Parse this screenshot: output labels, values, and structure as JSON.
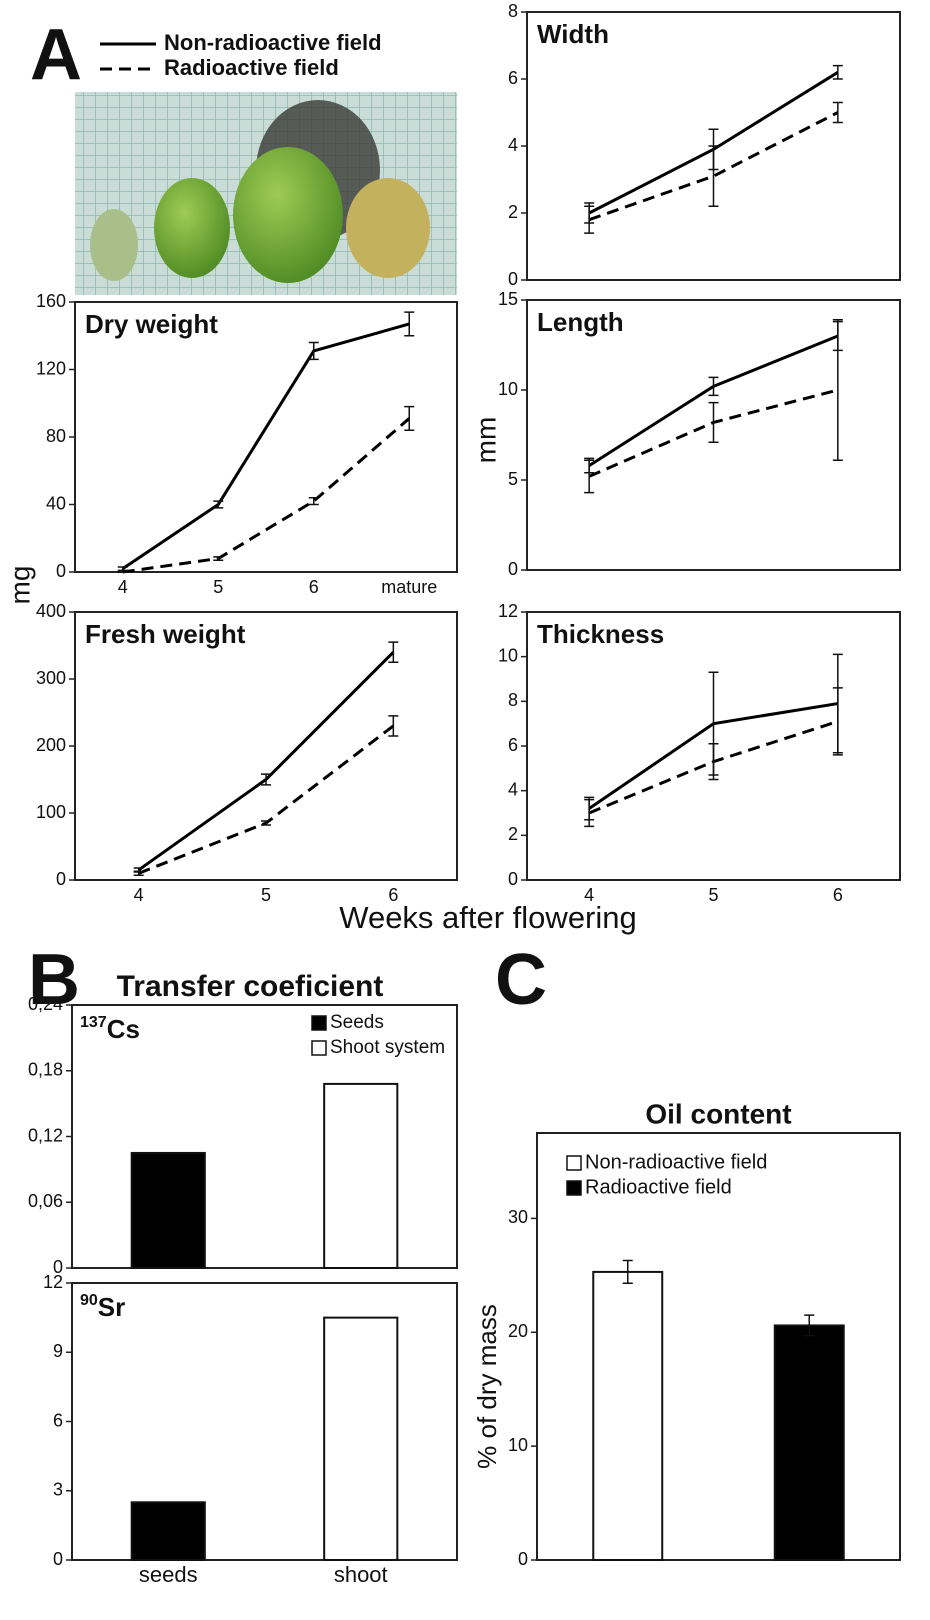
{
  "figure": {
    "panels": [
      "A",
      "B",
      "C"
    ],
    "x_label": "Weeks after flowering",
    "y_label_left": "mg",
    "y_label_right": "mm",
    "b_title": "Transfer coeficient"
  },
  "chart_data": [
    {
      "type": "line",
      "title": "Dry weight",
      "categories": [
        "4",
        "5",
        "6",
        "mature"
      ],
      "ylim": [
        0,
        160
      ],
      "yticks": [
        0,
        40,
        80,
        120,
        160
      ],
      "series": [
        {
          "name": "Non-radioactive field",
          "style": "solid",
          "color": "#000000",
          "values": [
            2,
            40,
            131,
            147
          ],
          "errors": [
            1,
            2,
            5,
            7
          ]
        },
        {
          "name": "Radioactive field",
          "style": "dashed",
          "color": "#000000",
          "values": [
            0,
            8,
            42,
            91
          ],
          "errors": [
            0,
            1,
            2,
            7
          ]
        }
      ]
    },
    {
      "type": "line",
      "title": "Width",
      "categories": [
        null,
        null,
        null
      ],
      "ylim": [
        0,
        8
      ],
      "yticks": [
        0,
        2,
        4,
        6,
        8
      ],
      "series": [
        {
          "style": "solid",
          "color": "#000000",
          "values": [
            2.0,
            3.9,
            6.2
          ],
          "errors": [
            0.3,
            0.6,
            0.2
          ]
        },
        {
          "style": "dashed",
          "color": "#000000",
          "values": [
            1.8,
            3.1,
            5.0
          ],
          "errors": [
            0.4,
            0.9,
            0.3
          ]
        }
      ]
    },
    {
      "type": "line",
      "title": "Length",
      "categories": [
        null,
        null,
        null
      ],
      "ylim": [
        0,
        15
      ],
      "yticks": [
        0,
        5,
        10,
        15
      ],
      "series": [
        {
          "style": "solid",
          "color": "#000000",
          "values": [
            5.8,
            10.2,
            13.0
          ],
          "errors": [
            0.4,
            0.5,
            0.8
          ]
        },
        {
          "style": "dashed",
          "color": "#000000",
          "values": [
            5.2,
            8.2,
            10.0
          ],
          "errors": [
            0.9,
            1.1,
            3.9
          ]
        }
      ]
    },
    {
      "type": "line",
      "title": "Fresh weight",
      "categories": [
        "4",
        "5",
        "6"
      ],
      "ylim": [
        0,
        400
      ],
      "yticks": [
        0,
        100,
        200,
        300,
        400
      ],
      "series": [
        {
          "style": "solid",
          "color": "#000000",
          "values": [
            15,
            150,
            340
          ],
          "errors": [
            3,
            8,
            15
          ]
        },
        {
          "style": "dashed",
          "color": "#000000",
          "values": [
            10,
            85,
            230
          ],
          "errors": [
            3,
            3,
            15
          ]
        }
      ]
    },
    {
      "type": "line",
      "title": "Thickness",
      "categories": [
        "4",
        "5",
        "6"
      ],
      "ylim": [
        0,
        12
      ],
      "yticks": [
        0,
        2,
        4,
        6,
        8,
        10,
        12
      ],
      "series": [
        {
          "style": "solid",
          "color": "#000000",
          "values": [
            3.2,
            7.0,
            7.9
          ],
          "errors": [
            0.5,
            2.3,
            2.2
          ]
        },
        {
          "style": "dashed",
          "color": "#000000",
          "values": [
            3.0,
            5.3,
            7.1
          ],
          "errors": [
            0.6,
            0.8,
            1.5
          ]
        }
      ]
    },
    {
      "type": "bar",
      "isotope": {
        "mass": "137",
        "symbol": "Cs"
      },
      "categories": [
        null,
        null
      ],
      "ylim": [
        0,
        0.24
      ],
      "yticks": [
        0,
        {
          "value": 0.06,
          "label": "0,06"
        },
        {
          "value": 0.12,
          "label": "0,12"
        },
        {
          "value": 0.18,
          "label": "0,18"
        },
        {
          "value": 0.24,
          "label": "0,24"
        }
      ],
      "legend": "top-right",
      "series": [
        {
          "name": "Seeds",
          "color": "#000000",
          "values": [
            0.105,
            null
          ]
        },
        {
          "name": "Shoot system",
          "color": "#ffffff",
          "values": [
            null,
            0.168
          ]
        }
      ]
    },
    {
      "type": "bar",
      "isotope": {
        "mass": "90",
        "symbol": "Sr"
      },
      "categories": [
        "seeds",
        "shoot"
      ],
      "ylim": [
        0,
        12
      ],
      "yticks": [
        0,
        3,
        6,
        9,
        12
      ],
      "series": [
        {
          "color": "#000000",
          "values": [
            2.5,
            null
          ]
        },
        {
          "color": "#ffffff",
          "values": [
            null,
            10.5
          ]
        }
      ]
    },
    {
      "type": "bar",
      "title": "Oil content",
      "y_label": "% of dry mass",
      "categories": [
        null,
        null
      ],
      "ylim": [
        0,
        37.5
      ],
      "yticks": [
        0,
        10,
        20,
        30
      ],
      "legend": "top-left",
      "series": [
        {
          "name": "Non-radioactive field",
          "color": "#ffffff",
          "values": [
            25.3,
            null
          ],
          "errors": [
            1.0,
            null
          ]
        },
        {
          "name": "Radioactive field",
          "color": "#000000",
          "values": [
            null,
            20.6
          ],
          "errors": [
            null,
            0.9
          ]
        }
      ]
    }
  ]
}
